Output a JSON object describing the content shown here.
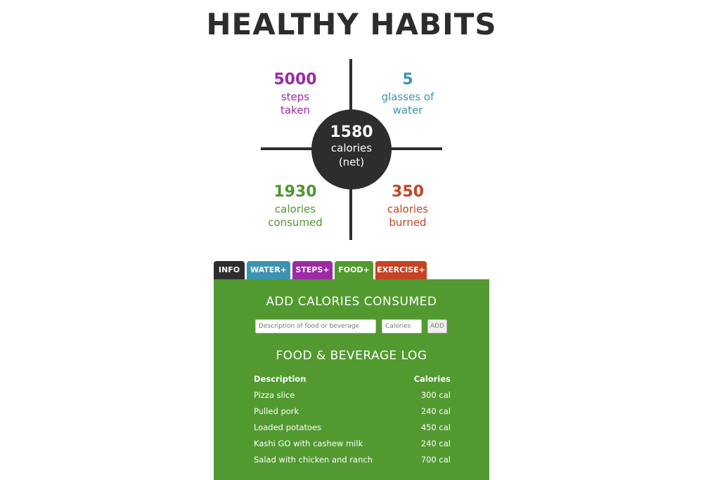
{
  "title": "HEALTHY HABITS",
  "center": {
    "value": "1580",
    "label_line1": "calories",
    "label_line2": "(net)"
  },
  "quadrants": {
    "steps": {
      "value": "5000",
      "line1": "steps",
      "line2": "taken",
      "color": "#9b2aa3"
    },
    "water": {
      "value": "5",
      "line1": "glasses of",
      "line2": "water",
      "color": "#3c93b3"
    },
    "consumed": {
      "value": "1930",
      "line1": "calories",
      "line2": "consumed",
      "color": "#4e962e"
    },
    "burned": {
      "value": "350",
      "line1": "calories",
      "line2": "burned",
      "color": "#c44323"
    }
  },
  "tabs": {
    "info": "INFO",
    "water": "WATER+",
    "steps": "STEPS+",
    "food": "FOOD+",
    "exercise": "EXERCISE+",
    "active": "FOOD+"
  },
  "food_panel": {
    "add_heading": "ADD CALORIES CONSUMED",
    "desc_placeholder": "Description of food or beverage",
    "desc_value": "",
    "cal_placeholder": "Calories",
    "cal_value": "",
    "add_button": "ADD",
    "log_heading": "FOOD & BEVERAGE LOG",
    "columns": [
      "Description",
      "Calories"
    ],
    "rows": [
      [
        "Pizza slice",
        "300 cal"
      ],
      [
        "Pulled pork",
        "240 cal"
      ],
      [
        "Loaded potatoes",
        "450 cal"
      ],
      [
        "Kashi GO with cashew milk",
        "240 cal"
      ],
      [
        "Salad with chicken and ranch",
        "700 cal"
      ]
    ]
  },
  "colors": {
    "dark": "#2d2d2d",
    "food_green": "#529a30"
  }
}
